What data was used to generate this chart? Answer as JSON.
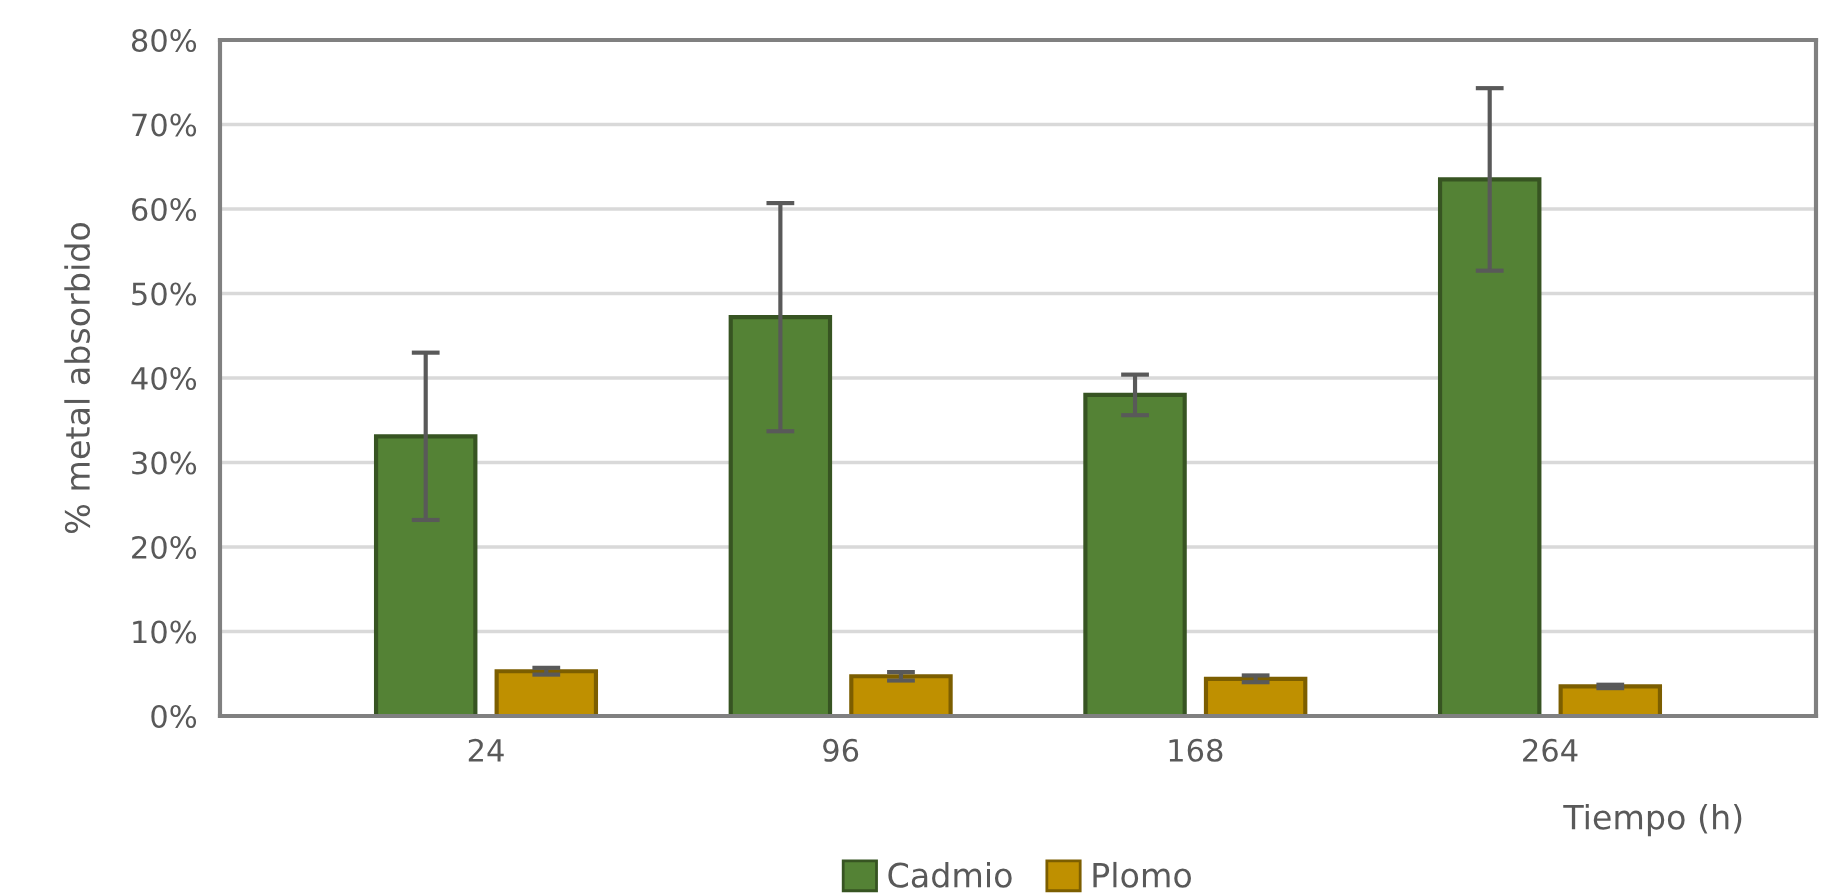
{
  "chart_data": {
    "type": "bar",
    "xlabel": "Tiempo (h)",
    "ylabel": "% metal absorbido",
    "categories": [
      "24",
      "96",
      "168",
      "264"
    ],
    "series": [
      {
        "name": "Cadmio",
        "color": "#548235",
        "values": [
          33.1,
          47.2,
          38.0,
          63.5
        ],
        "errors": [
          9.9,
          13.5,
          2.4,
          10.8
        ]
      },
      {
        "name": "Plomo",
        "color": "#bf9000",
        "values": [
          5.3,
          4.7,
          4.4,
          3.5
        ],
        "errors": [
          0.4,
          0.5,
          0.4,
          0.2
        ]
      }
    ],
    "ylim": [
      0,
      80
    ],
    "yticks": [
      {
        "value": 0,
        "label": "0%"
      },
      {
        "value": 10,
        "label": "10%"
      },
      {
        "value": 20,
        "label": "20%"
      },
      {
        "value": 30,
        "label": "30%"
      },
      {
        "value": 40,
        "label": "40%"
      },
      {
        "value": 50,
        "label": "50%"
      },
      {
        "value": 60,
        "label": "60%"
      },
      {
        "value": 70,
        "label": "70%"
      },
      {
        "value": 80,
        "label": "80%"
      }
    ],
    "grid": "y",
    "legend": "bottom"
  }
}
